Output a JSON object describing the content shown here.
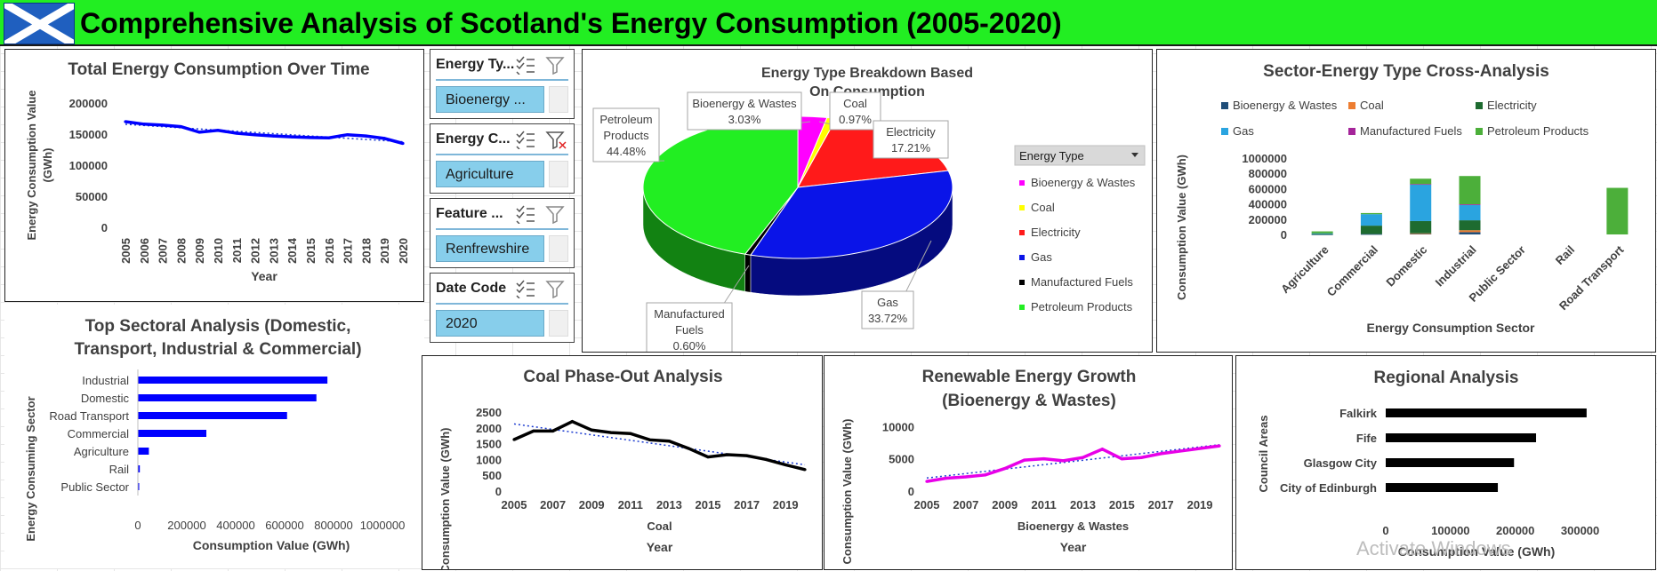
{
  "banner": {
    "title": "Comprehensive Analysis of Scotland's Energy Consumption (2005-2020)",
    "flag_icon": "saltire-flag-icon"
  },
  "colors": {
    "banner_green": "#22ee22",
    "series_blue": "#0000ff",
    "gas_blue": "#0a14e8",
    "electricity_red": "#ff1a1a",
    "petroleum_green": "#22ee22",
    "bioenergy_magenta": "#ff00ff",
    "coal_yellow": "#ffff00",
    "manufactured_black": "#000000",
    "slicer_item_blue": "#87ceeb"
  },
  "slicers": [
    {
      "header": "Energy Ty...",
      "selected": "Bioenergy ...",
      "filter_icon": "filter-icon",
      "multi_select_icon": "multi-select-icon"
    },
    {
      "header": "Energy C...",
      "selected": "Agriculture",
      "filter_icon": "clear-filter-icon",
      "multi_select_icon": "multi-select-icon"
    },
    {
      "header": "Feature ...",
      "selected": "Renfrewshire",
      "filter_icon": "filter-icon",
      "multi_select_icon": "multi-select-icon"
    },
    {
      "header": "Date Code",
      "selected": "2020",
      "filter_icon": "filter-icon",
      "multi_select_icon": "multi-select-icon"
    }
  ],
  "watermark": "Activate Windows",
  "chart_data": [
    {
      "id": "total",
      "type": "line",
      "title": "Total Energy Consumption Over Time",
      "xlabel": "Year",
      "ylabel": "Energy Consumption Value (GWh)",
      "x": [
        "2005",
        "2006",
        "2007",
        "2008",
        "2009",
        "2010",
        "2011",
        "2012",
        "2013",
        "2014",
        "2015",
        "2016",
        "2017",
        "2018",
        "2019",
        "2020"
      ],
      "series": [
        {
          "values": [
            170000,
            166000,
            164500,
            162000,
            153000,
            156000,
            151500,
            149000,
            147000,
            145500,
            144500,
            144000,
            149000,
            147000,
            143000,
            135000
          ]
        }
      ],
      "trendline": true,
      "ylim": [
        0,
        200000
      ],
      "yticks": [
        "0",
        "50000",
        "100000",
        "150000",
        "200000"
      ]
    },
    {
      "id": "top_sectoral",
      "type": "bar",
      "orientation": "horizontal",
      "title_lines": [
        "Top Sectoral Analysis (Domestic,",
        "Transport, Industrial & Commercial)"
      ],
      "xlabel": "Consumption Value (GWh)",
      "ylabel": "Energy Consuming Sector",
      "categories": [
        "Industrial",
        "Domestic",
        "Road Transport",
        "Commercial",
        "Agriculture",
        "Rail",
        "Public Sector"
      ],
      "values": [
        775000,
        730000,
        610000,
        280000,
        45000,
        8000,
        4000
      ],
      "xlim": [
        0,
        1000000
      ],
      "xticks": [
        "0",
        "200000",
        "400000",
        "600000",
        "800000",
        "1000000"
      ]
    },
    {
      "id": "pie",
      "type": "pie",
      "title_lines": [
        "Energy Type Breakdown Based",
        "On Consumption"
      ],
      "legend_title": "Energy  Type",
      "legend_placement": "right",
      "slices": [
        {
          "name": "Bioenergy & Wastes",
          "percent": 3.03,
          "label": "3.03%",
          "color": "#ff00ff"
        },
        {
          "name": "Coal",
          "percent": 0.97,
          "label": "0.97%",
          "color": "#ffff00"
        },
        {
          "name": "Electricity",
          "percent": 17.21,
          "label": "17.21%",
          "color": "#ff1a1a"
        },
        {
          "name": "Gas",
          "percent": 33.72,
          "label": "33.72%",
          "color": "#0a14e8"
        },
        {
          "name": "Manufactured Fuels",
          "percent": 0.6,
          "label": "0.60%",
          "color": "#000000"
        },
        {
          "name": "Petroleum Products",
          "percent": 44.48,
          "label": "44.48%",
          "color": "#22ee22"
        }
      ],
      "data_label_lines": [
        [
          "Bioenergy & Wastes",
          "3.03%"
        ],
        [
          "Coal",
          "0.97%"
        ],
        [
          "Electricity",
          "17.21%"
        ],
        [
          "Gas",
          "33.72%"
        ],
        [
          "Manufactured",
          "Fuels",
          "0.60%"
        ],
        [
          "Petroleum",
          "Products",
          "44.48%"
        ]
      ]
    },
    {
      "id": "cross",
      "type": "bar",
      "stacked": true,
      "title": "Sector-Energy Type Cross-Analysis",
      "xlabel": "Energy Consumption Sector",
      "ylabel": "Consumption Value (GWh)",
      "legend_placement": "top",
      "categories": [
        "Agriculture",
        "Commercial",
        "Domestic",
        "Industrial",
        "Public Sector",
        "Rail",
        "Road Transport"
      ],
      "series": [
        {
          "name": "Bioenergy & Wastes",
          "color": "#1f4e79",
          "values": [
            2000,
            5000,
            10000,
            30000,
            0,
            0,
            0
          ]
        },
        {
          "name": "Coal",
          "color": "#ed7d31",
          "values": [
            0,
            0,
            5000,
            25000,
            0,
            0,
            0
          ]
        },
        {
          "name": "Electricity",
          "color": "#1e6b30",
          "values": [
            5000,
            110000,
            160000,
            130000,
            0,
            0,
            0
          ]
        },
        {
          "name": "Gas",
          "color": "#2aa4e0",
          "values": [
            8000,
            150000,
            480000,
            200000,
            0,
            0,
            0
          ]
        },
        {
          "name": "Manufactured Fuels",
          "color": "#a5259a",
          "values": [
            0,
            0,
            5000,
            10000,
            0,
            0,
            0
          ]
        },
        {
          "name": "Petroleum Products",
          "color": "#4caf3a",
          "values": [
            25000,
            15000,
            70000,
            370000,
            0,
            0,
            610000
          ]
        }
      ],
      "ylim": [
        0,
        1000000
      ],
      "yticks": [
        "0",
        "200000",
        "400000",
        "600000",
        "800000",
        "1000000"
      ]
    },
    {
      "id": "coal",
      "type": "line",
      "title": "Coal Phase-Out Analysis",
      "series_label": "Coal",
      "xlabel": "Year",
      "ylabel": "Consumption Value (GWh)",
      "x": [
        "2005",
        "2006",
        "2007",
        "2008",
        "2009",
        "2010",
        "2011",
        "2012",
        "2013",
        "2014",
        "2015",
        "2016",
        "2017",
        "2018",
        "2019",
        "2020"
      ],
      "series": [
        {
          "name": "Coal",
          "values": [
            1630,
            1900,
            1900,
            2200,
            1930,
            1850,
            1820,
            1620,
            1580,
            1350,
            1080,
            1150,
            1120,
            1000,
            830,
            680
          ]
        }
      ],
      "trendline": true,
      "ylim": [
        0,
        2500
      ],
      "yticks": [
        "0",
        "500",
        "1000",
        "1500",
        "2000",
        "2500"
      ],
      "xtick_labels": [
        "2005",
        "2007",
        "2009",
        "2011",
        "2013",
        "2015",
        "2017",
        "2019"
      ]
    },
    {
      "id": "renewable",
      "type": "line",
      "title_lines": [
        "Renewable Energy Growth",
        "(Bioenergy & Wastes)"
      ],
      "series_label": "Bioenergy & Wastes",
      "xlabel": "Year",
      "ylabel": "Consumption Value (GWh)",
      "x": [
        "2005",
        "2006",
        "2007",
        "2008",
        "2009",
        "2010",
        "2011",
        "2012",
        "2013",
        "2014",
        "2015",
        "2016",
        "2017",
        "2018",
        "2019",
        "2020"
      ],
      "series": [
        {
          "name": "Bioenergy & Wastes",
          "values": [
            1500,
            2000,
            2200,
            2500,
            3500,
            4800,
            5000,
            4700,
            5200,
            6500,
            5000,
            5200,
            5800,
            6200,
            6600,
            7000
          ]
        }
      ],
      "trendline": true,
      "ylim": [
        0,
        15000
      ],
      "yticks": [
        "0",
        "5000",
        "10000"
      ],
      "xtick_labels": [
        "2005",
        "2007",
        "2009",
        "2011",
        "2013",
        "2015",
        "2017",
        "2019"
      ]
    },
    {
      "id": "regional",
      "type": "bar",
      "orientation": "horizontal",
      "title": "Regional Analysis",
      "xlabel": "Consumption Value (GWh)",
      "ylabel": "Council Areas",
      "categories": [
        "Falkirk",
        "Fife",
        "Glasgow City",
        "City of Edinburgh"
      ],
      "values": [
        310000,
        232000,
        198000,
        173000
      ],
      "xlim": [
        0,
        350000
      ],
      "xticks": [
        "0",
        "100000",
        "200000",
        "300000"
      ]
    }
  ]
}
